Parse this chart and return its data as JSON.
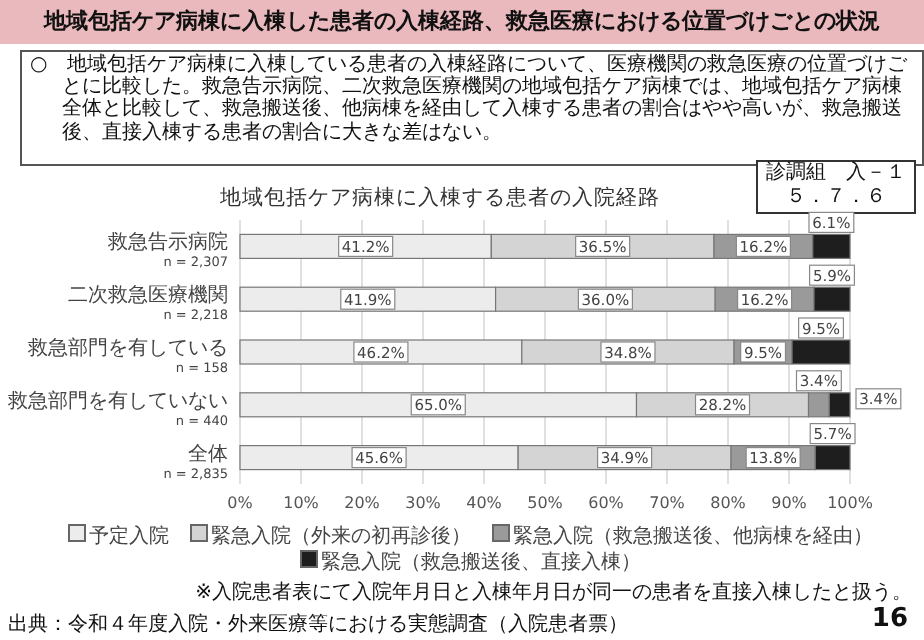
{
  "chart_data": {
    "type": "bar",
    "orientation": "horizontal",
    "stacked": true,
    "title": "地域包括ケア病棟に入棟した患者の入棟経路、救急医療における位置づけごとの状況",
    "subtitle": "地域包括ケア病棟に入棟する患者の入院経路",
    "categories": [
      "救急告示病院\nn = 2,307",
      "二次救急医療機関\nn = 2,218",
      "救急部門を有している\nn = 158",
      "救急部門を有していない\nn = 440",
      "全体\nn = 2,835"
    ],
    "series": [
      {
        "name": "予定入院",
        "color": "#ececec",
        "values": [
          41.2,
          41.9,
          46.2,
          65.0,
          45.6
        ],
        "value_labels": [
          "41.2%",
          "41.9%",
          "46.2%",
          "65.0%",
          "45.6%"
        ]
      },
      {
        "name": "緊急入院（外来の初再診後）",
        "color": "#d4d4d4",
        "values": [
          36.5,
          36.0,
          34.8,
          28.2,
          34.9
        ],
        "value_labels": [
          "36.5%",
          "36.0%",
          "34.8%",
          "28.2%",
          "34.9%"
        ]
      },
      {
        "name": "緊急入院（救急搬送後、他病棟を経由）",
        "color": "#9a9a9a",
        "values": [
          16.2,
          16.2,
          9.5,
          3.4,
          13.8
        ],
        "value_labels": [
          "16.2%",
          "16.2%",
          "9.5%",
          "3.4%",
          "13.8%"
        ]
      },
      {
        "name": "緊急入院（救急搬送後、直接入棟）",
        "color": "#1e1e1e",
        "values": [
          6.1,
          5.9,
          9.5,
          3.4,
          5.7
        ],
        "value_labels": [
          "6.1%",
          "5.9%",
          "9.5%",
          "3.4%",
          "5.7%"
        ]
      }
    ],
    "xlim": [
      0,
      100
    ],
    "xticks": [
      {
        "value": 0,
        "label": "0%"
      },
      {
        "value": 10,
        "label": "10%"
      },
      {
        "value": 20,
        "label": "20%"
      },
      {
        "value": 30,
        "label": "30%"
      },
      {
        "value": 40,
        "label": "40%"
      },
      {
        "value": 50,
        "label": "50%"
      },
      {
        "value": 60,
        "label": "60%"
      },
      {
        "value": 70,
        "label": "70%"
      },
      {
        "value": 80,
        "label": "80%"
      },
      {
        "value": 90,
        "label": "90%"
      },
      {
        "value": 100,
        "label": "100%"
      }
    ],
    "grid": "x",
    "legend": "bottom",
    "annotations": [
      "○　地域包括ケア病棟に入棟している患者の入棟経路について、医療機関の救急医療の位置づけごとに比較した。救急告示病院、二次救急医療機関の地域包括ケア病棟では、地域包括ケア病棟全体と比較して、救急搬送後、他病棟を経由して入棟する患者の割合はやや高いが、救急搬送後、直接入棟する患者の割合に大きな差はない。",
      "診調組　入－１",
      "５．７．６",
      "※入院患者表にて入院年月日と入棟年月日が同一の患者を直接入棟したと扱う。",
      "出典：令和４年度入院・外来医療等における実態調査（入院患者票）",
      "16"
    ]
  }
}
